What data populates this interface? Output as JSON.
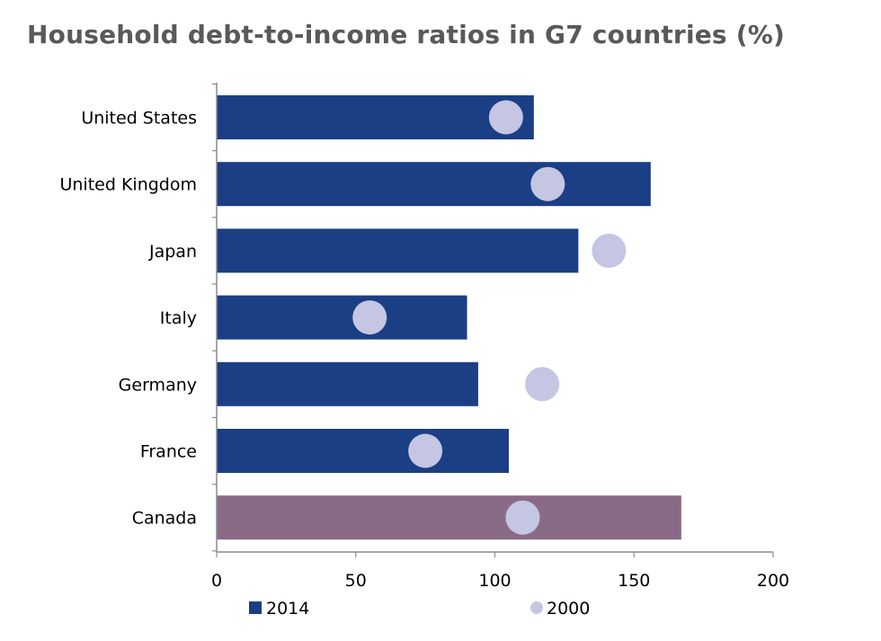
{
  "chart_data": {
    "type": "bar",
    "orientation": "horizontal",
    "title": "Household debt-to-income ratios in G7 countries (%)",
    "categories": [
      "United States",
      "United Kingdom",
      "Japan",
      "Italy",
      "Germany",
      "France",
      "Canada"
    ],
    "series": [
      {
        "name": "2014",
        "marker": "bar",
        "color": "#1b3f84",
        "values": [
          114,
          156,
          130,
          90,
          94,
          105,
          167
        ]
      },
      {
        "name": "2000",
        "marker": "circle",
        "color": "#c4c6e4",
        "values": [
          104,
          119,
          141,
          55,
          117,
          75,
          110
        ]
      }
    ],
    "highlight": {
      "category": "Canada",
      "color": "#8a6b86"
    },
    "xlim": [
      0,
      200
    ],
    "xticks": [
      0,
      50,
      100,
      150,
      200
    ],
    "legend_position": "bottom",
    "grid": false
  }
}
